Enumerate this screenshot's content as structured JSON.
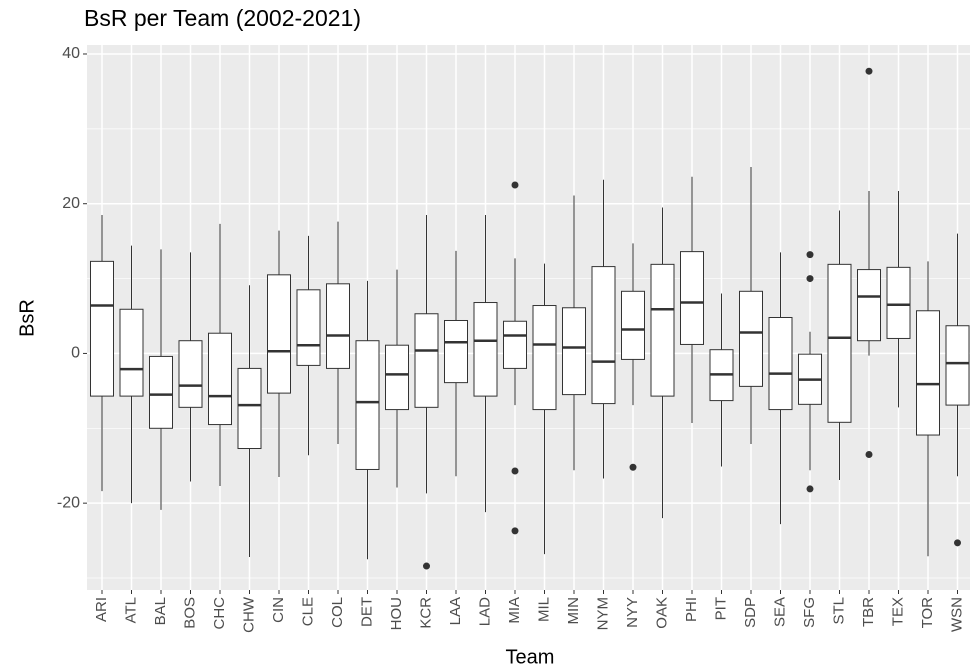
{
  "chart_data": {
    "type": "boxplot",
    "title": "BsR per Team (2002-2021)",
    "x_label": "Team",
    "y_label": "BsR",
    "categories": [
      "ARI",
      "ATL",
      "BAL",
      "BOS",
      "CHC",
      "CHW",
      "CIN",
      "CLE",
      "COL",
      "DET",
      "HOU",
      "KCR",
      "LAA",
      "LAD",
      "MIA",
      "MIL",
      "MIN",
      "NYM",
      "NYY",
      "OAK",
      "PHI",
      "PIT",
      "SDP",
      "SEA",
      "SFG",
      "STL",
      "TBR",
      "TEX",
      "TOR",
      "WSN"
    ],
    "boxes": [
      {
        "low": -18.4,
        "q1": -5.7,
        "median": 6.4,
        "q3": 12.3,
        "high": 18.5,
        "outliers": []
      },
      {
        "low": -20,
        "q1": -5.7,
        "median": -2.1,
        "q3": 5.9,
        "high": 14.4,
        "outliers": []
      },
      {
        "low": -20.9,
        "q1": -10,
        "median": -5.5,
        "q3": -0.4,
        "high": 13.9,
        "outliers": []
      },
      {
        "low": -17.1,
        "q1": -7.2,
        "median": -4.3,
        "q3": 1.7,
        "high": 13.5,
        "outliers": []
      },
      {
        "low": -17.7,
        "q1": -9.5,
        "median": -5.7,
        "q3": 2.7,
        "high": 17.3,
        "outliers": []
      },
      {
        "low": -27.2,
        "q1": -12.7,
        "median": -6.9,
        "q3": -2,
        "high": 9.1,
        "outliers": []
      },
      {
        "low": -16.5,
        "q1": -5.3,
        "median": 0.3,
        "q3": 10.5,
        "high": 16.4,
        "outliers": []
      },
      {
        "low": -13.6,
        "q1": -1.6,
        "median": 1.1,
        "q3": 8.5,
        "high": 15.7,
        "outliers": []
      },
      {
        "low": -12.1,
        "q1": -2,
        "median": 2.4,
        "q3": 9.3,
        "high": 17.6,
        "outliers": []
      },
      {
        "low": -27.5,
        "q1": -15.5,
        "median": -6.5,
        "q3": 1.7,
        "high": 9.7,
        "outliers": []
      },
      {
        "low": -17.9,
        "q1": -7.5,
        "median": -2.8,
        "q3": 1.1,
        "high": 11.2,
        "outliers": []
      },
      {
        "low": -18.7,
        "q1": -7.2,
        "median": 0.4,
        "q3": 5.3,
        "high": 18.5,
        "outliers": [
          -28.4
        ]
      },
      {
        "low": -16.4,
        "q1": -3.9,
        "median": 1.5,
        "q3": 4.4,
        "high": 13.7,
        "outliers": []
      },
      {
        "low": -21.2,
        "q1": -5.7,
        "median": 1.7,
        "q3": 6.8,
        "high": 18.5,
        "outliers": []
      },
      {
        "low": -6.9,
        "q1": -2,
        "median": 2.4,
        "q3": 4.3,
        "high": 12.7,
        "outliers": [
          22.5,
          -15.7,
          -23.7
        ]
      },
      {
        "low": -26.8,
        "q1": -7.5,
        "median": 1.2,
        "q3": 6.4,
        "high": 12,
        "outliers": []
      },
      {
        "low": -15.6,
        "q1": -5.5,
        "median": 0.8,
        "q3": 6.1,
        "high": 21.1,
        "outliers": []
      },
      {
        "low": -16.7,
        "q1": -6.7,
        "median": -1.1,
        "q3": 11.6,
        "high": 23.2,
        "outliers": []
      },
      {
        "low": -6.9,
        "q1": -0.8,
        "median": 3.2,
        "q3": 8.3,
        "high": 14.7,
        "outliers": [
          -15.2
        ]
      },
      {
        "low": -22,
        "q1": -5.7,
        "median": 5.9,
        "q3": 11.9,
        "high": 19.5,
        "outliers": []
      },
      {
        "low": -9.3,
        "q1": 1.2,
        "median": 6.8,
        "q3": 13.6,
        "high": 23.6,
        "outliers": []
      },
      {
        "low": -15.1,
        "q1": -6.3,
        "median": -2.8,
        "q3": 0.5,
        "high": 8,
        "outliers": []
      },
      {
        "low": -12.1,
        "q1": -4.4,
        "median": 2.8,
        "q3": 8.3,
        "high": 24.9,
        "outliers": []
      },
      {
        "low": -22.8,
        "q1": -7.5,
        "median": -2.7,
        "q3": 4.8,
        "high": 13.5,
        "outliers": []
      },
      {
        "low": -15.6,
        "q1": -6.8,
        "median": -3.5,
        "q3": -0.1,
        "high": 2.9,
        "outliers": [
          13.2,
          10,
          -18.1
        ]
      },
      {
        "low": -16.9,
        "q1": -9.2,
        "median": 2.1,
        "q3": 11.9,
        "high": 19.1,
        "outliers": []
      },
      {
        "low": -0.3,
        "q1": 1.7,
        "median": 7.6,
        "q3": 11.2,
        "high": 21.7,
        "outliers": [
          37.7,
          -13.5
        ]
      },
      {
        "low": -7.2,
        "q1": 2,
        "median": 6.5,
        "q3": 11.5,
        "high": 21.7,
        "outliers": []
      },
      {
        "low": -27.1,
        "q1": -10.9,
        "median": -4.1,
        "q3": 5.7,
        "high": 12.3,
        "outliers": []
      },
      {
        "low": -16.4,
        "q1": -6.9,
        "median": -1.3,
        "q3": 3.7,
        "high": 16,
        "outliers": [
          -25.3
        ]
      }
    ],
    "ylim": [
      -31.6,
      41.2
    ],
    "yticks": [
      -20,
      0,
      20,
      40
    ],
    "minor_yticks": [
      -30,
      -10,
      10,
      30
    ],
    "grid": true,
    "panel_color": "#ebebeb",
    "box_fill": "#ffffff",
    "line_color": "#333333"
  }
}
